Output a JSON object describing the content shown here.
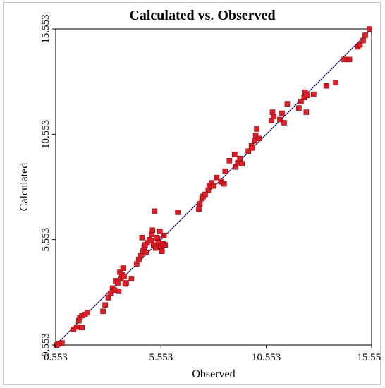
{
  "chart_data": {
    "type": "scatter",
    "title": "Calculated vs. Observed",
    "xlabel": "Observed",
    "ylabel": "Calculated",
    "xlim": [
      0.553,
      15.553
    ],
    "ylim": [
      0.553,
      15.553
    ],
    "xticks": [
      "0.553",
      "5.553",
      "10.553",
      "15.553"
    ],
    "yticks": [
      "0.553",
      "5.553",
      "10.553",
      "15.553"
    ],
    "grid": false,
    "legend": "none",
    "point_color": "#e01b24",
    "line_color": "#1a1a7a",
    "reference_line": {
      "from": [
        0.553,
        0.553
      ],
      "to": [
        15.553,
        15.553
      ]
    },
    "points": [
      [
        0.6,
        0.55
      ],
      [
        0.7,
        0.6
      ],
      [
        0.85,
        0.65
      ],
      [
        1.4,
        1.3
      ],
      [
        1.55,
        1.4
      ],
      [
        1.8,
        1.38
      ],
      [
        1.65,
        1.7
      ],
      [
        1.7,
        1.85
      ],
      [
        1.8,
        1.95
      ],
      [
        1.95,
        2.0
      ],
      [
        2.05,
        2.1
      ],
      [
        2.8,
        2.15
      ],
      [
        2.9,
        2.45
      ],
      [
        3.05,
        2.8
      ],
      [
        3.15,
        3.0
      ],
      [
        3.25,
        3.25
      ],
      [
        3.35,
        3.15
      ],
      [
        3.4,
        3.6
      ],
      [
        3.5,
        3.5
      ],
      [
        3.65,
        3.7
      ],
      [
        3.7,
        3.9
      ],
      [
        3.8,
        3.8
      ],
      [
        3.9,
        3.5
      ],
      [
        3.6,
        4.0
      ],
      [
        3.55,
        3.1
      ],
      [
        3.75,
        4.2
      ],
      [
        4.15,
        3.7
      ],
      [
        3.85,
        3.45
      ],
      [
        4.4,
        4.4
      ],
      [
        4.5,
        4.6
      ],
      [
        4.6,
        4.8
      ],
      [
        4.7,
        5.0
      ],
      [
        4.75,
        5.2
      ],
      [
        4.85,
        4.95
      ],
      [
        4.9,
        5.4
      ],
      [
        5.0,
        5.55
      ],
      [
        5.1,
        5.5
      ],
      [
        5.2,
        5.3
      ],
      [
        5.3,
        5.15
      ],
      [
        5.4,
        5.6
      ],
      [
        5.45,
        5.4
      ],
      [
        5.55,
        5.2
      ],
      [
        5.65,
        5.35
      ],
      [
        5.7,
        5.75
      ],
      [
        5.25,
        6.9
      ],
      [
        4.65,
        5.65
      ],
      [
        4.8,
        5.3
      ],
      [
        5.1,
        5.8
      ],
      [
        5.6,
        5.0
      ],
      [
        5.15,
        6.0
      ],
      [
        5.35,
        5.65
      ],
      [
        5.75,
        5.3
      ],
      [
        5.5,
        5.95
      ],
      [
        6.35,
        6.85
      ],
      [
        7.35,
        7.0
      ],
      [
        7.4,
        7.25
      ],
      [
        7.5,
        7.5
      ],
      [
        7.55,
        7.6
      ],
      [
        7.65,
        7.7
      ],
      [
        7.8,
        7.9
      ],
      [
        7.85,
        8.1
      ],
      [
        7.95,
        8.25
      ],
      [
        8.05,
        8.1
      ],
      [
        8.2,
        8.5
      ],
      [
        8.4,
        8.3
      ],
      [
        8.55,
        8.2
      ],
      [
        8.6,
        8.8
      ],
      [
        8.8,
        9.3
      ],
      [
        9.1,
        9.0
      ],
      [
        9.2,
        9.2
      ],
      [
        9.3,
        9.4
      ],
      [
        9.4,
        9.15
      ],
      [
        9.05,
        9.6
      ],
      [
        9.7,
        9.75
      ],
      [
        9.85,
        10.0
      ],
      [
        9.9,
        9.9
      ],
      [
        10.0,
        10.25
      ],
      [
        10.05,
        10.5
      ],
      [
        10.1,
        10.8
      ],
      [
        10.2,
        10.35
      ],
      [
        10.8,
        11.2
      ],
      [
        10.9,
        11.4
      ],
      [
        10.85,
        11.6
      ],
      [
        11.2,
        11.25
      ],
      [
        11.3,
        11.55
      ],
      [
        11.4,
        11.1
      ],
      [
        11.55,
        12.0
      ],
      [
        12.1,
        11.8
      ],
      [
        12.2,
        12.1
      ],
      [
        12.35,
        12.3
      ],
      [
        12.4,
        12.55
      ],
      [
        12.45,
        11.6
      ],
      [
        12.5,
        12.4
      ],
      [
        12.8,
        12.45
      ],
      [
        13.4,
        12.85
      ],
      [
        13.85,
        13.0
      ],
      [
        14.25,
        14.1
      ],
      [
        14.5,
        14.1
      ],
      [
        14.9,
        14.7
      ],
      [
        15.0,
        14.8
      ],
      [
        15.15,
        15.0
      ],
      [
        15.25,
        15.25
      ],
      [
        15.45,
        15.55
      ]
    ]
  }
}
